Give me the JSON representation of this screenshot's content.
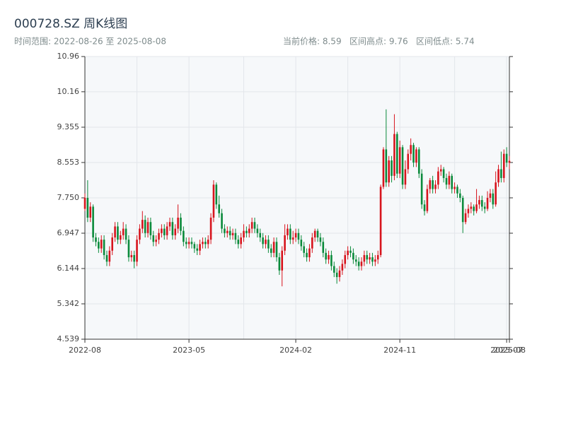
{
  "chart_data": {
    "type": "candlestick",
    "title": "000728.SZ 周K线图",
    "subtitle": "时间范围: 2022-08-26 至 2025-08-08",
    "stats": "当前价格: 8.59   区间高点: 9.76   区间低点: 5.74",
    "up_color": "#d7141d",
    "down_color": "#0b8a3b",
    "categories": [
      "2022-08",
      null,
      null,
      null,
      null,
      null,
      null,
      null,
      null,
      null,
      null,
      null,
      null,
      null,
      null,
      null,
      null,
      null,
      null,
      null,
      null,
      null,
      null,
      null,
      null,
      null,
      null,
      null,
      null,
      null,
      null,
      null,
      null,
      null,
      null,
      null,
      null,
      null,
      "2023-05",
      null,
      null,
      null,
      null,
      null,
      null,
      null,
      null,
      null,
      null,
      null,
      null,
      null,
      null,
      null,
      null,
      null,
      null,
      null,
      null,
      null,
      null,
      null,
      null,
      null,
      null,
      null,
      null,
      null,
      null,
      null,
      null,
      null,
      null,
      null,
      null,
      null,
      null,
      "2024-02",
      null,
      null,
      null,
      null,
      null,
      null,
      null,
      null,
      null,
      null,
      null,
      null,
      null,
      null,
      null,
      null,
      null,
      null,
      null,
      null,
      null,
      null,
      null,
      null,
      null,
      null,
      null,
      null,
      null,
      null,
      null,
      null,
      null,
      null,
      null,
      null,
      null,
      "2024-11",
      null,
      null,
      null,
      null,
      null,
      null,
      null,
      null,
      null,
      null,
      null,
      null,
      null,
      null,
      null,
      null,
      null,
      null,
      null,
      null,
      null,
      null,
      null,
      null,
      null,
      null,
      null,
      null,
      null,
      null,
      null,
      null,
      null,
      null,
      null,
      null,
      null,
      null,
      "2025-07",
      "2025-08"
    ],
    "xticks": [
      0,
      19,
      38,
      58,
      77,
      96,
      115,
      135,
      154,
      155
    ],
    "open": [
      7.5,
      7.75,
      7.3,
      7.55,
      6.85,
      6.75,
      6.6,
      6.8,
      6.45,
      6.3,
      6.55,
      6.85,
      7.1,
      6.8,
      6.9,
      7.05,
      6.8,
      6.4,
      6.45,
      6.3,
      6.8,
      7.05,
      7.25,
      6.95,
      7.2,
      6.9,
      6.75,
      6.8,
      6.95,
      7.05,
      6.9,
      7.1,
      7.2,
      6.9,
      7.05,
      7.3,
      7.0,
      6.75,
      6.7,
      6.75,
      6.7,
      6.6,
      6.55,
      6.7,
      6.75,
      6.7,
      6.8,
      7.3,
      8.05,
      7.6,
      7.4,
      7.05,
      6.95,
      7.0,
      6.9,
      6.95,
      6.8,
      6.7,
      6.85,
      7.0,
      6.95,
      7.05,
      7.2,
      7.05,
      6.95,
      6.85,
      6.7,
      6.8,
      6.6,
      6.5,
      6.75,
      6.4,
      6.1,
      6.55,
      6.9,
      7.05,
      6.8,
      6.85,
      6.95,
      6.8,
      6.65,
      6.5,
      6.4,
      6.6,
      6.85,
      7.0,
      6.85,
      6.75,
      6.5,
      6.35,
      6.45,
      6.2,
      6.05,
      5.95,
      6.1,
      6.25,
      6.45,
      6.55,
      6.5,
      6.35,
      6.3,
      6.2,
      6.3,
      6.45,
      6.35,
      6.4,
      6.3,
      6.35,
      6.45,
      8.0,
      8.85,
      8.1,
      8.6,
      8.25,
      9.2,
      8.3,
      8.9,
      8.05,
      8.4,
      8.75,
      8.95,
      8.55,
      8.85,
      8.3,
      7.6,
      7.45,
      7.95,
      8.15,
      7.95,
      8.05,
      8.35,
      8.4,
      8.2,
      8.05,
      8.25,
      7.95,
      8.0,
      7.85,
      7.75,
      7.2,
      7.4,
      7.5,
      7.55,
      7.45,
      7.6,
      7.7,
      7.55,
      7.5,
      7.75,
      7.85,
      7.6,
      8.1,
      8.4,
      8.2,
      8.75,
      8.55
    ],
    "close": [
      7.75,
      7.3,
      7.55,
      6.85,
      6.75,
      6.6,
      6.8,
      6.45,
      6.3,
      6.55,
      6.85,
      7.1,
      6.8,
      6.9,
      7.05,
      6.8,
      6.4,
      6.45,
      6.3,
      6.8,
      7.05,
      7.25,
      6.95,
      7.2,
      6.9,
      6.75,
      6.8,
      6.95,
      7.05,
      6.9,
      7.1,
      7.2,
      6.9,
      7.05,
      7.3,
      7.0,
      6.75,
      6.7,
      6.75,
      6.7,
      6.6,
      6.55,
      6.7,
      6.75,
      6.7,
      6.8,
      7.3,
      8.05,
      7.6,
      7.4,
      7.05,
      6.95,
      7.0,
      6.9,
      6.95,
      6.8,
      6.7,
      6.85,
      7.0,
      6.95,
      7.05,
      7.2,
      7.05,
      6.95,
      6.85,
      6.7,
      6.8,
      6.6,
      6.5,
      6.75,
      6.4,
      6.1,
      6.55,
      6.9,
      7.05,
      6.8,
      6.85,
      6.95,
      6.8,
      6.65,
      6.5,
      6.4,
      6.6,
      6.85,
      7.0,
      6.85,
      6.75,
      6.5,
      6.35,
      6.45,
      6.2,
      6.05,
      5.95,
      6.1,
      6.25,
      6.45,
      6.55,
      6.5,
      6.35,
      6.3,
      6.2,
      6.3,
      6.45,
      6.35,
      6.4,
      6.3,
      6.35,
      6.45,
      8.0,
      8.85,
      8.1,
      8.6,
      8.25,
      9.2,
      8.3,
      8.9,
      8.05,
      8.4,
      8.75,
      8.95,
      8.55,
      8.85,
      8.3,
      7.6,
      7.45,
      7.95,
      8.15,
      7.95,
      8.05,
      8.35,
      8.4,
      8.2,
      8.05,
      8.25,
      7.95,
      8.0,
      7.85,
      7.75,
      7.2,
      7.4,
      7.5,
      7.55,
      7.45,
      7.6,
      7.7,
      7.55,
      7.5,
      7.75,
      7.85,
      7.6,
      8.1,
      8.4,
      8.2,
      8.75,
      8.55,
      8.59
    ],
    "high": [
      7.85,
      8.15,
      7.65,
      7.6,
      6.95,
      6.85,
      6.9,
      6.9,
      6.55,
      6.65,
      6.95,
      7.2,
      7.2,
      7.0,
      7.2,
      7.15,
      6.9,
      6.55,
      6.55,
      6.9,
      7.15,
      7.45,
      7.35,
      7.3,
      7.3,
      7.0,
      6.9,
      7.05,
      7.15,
      7.15,
      7.2,
      7.3,
      7.3,
      7.15,
      7.6,
      7.4,
      7.1,
      6.85,
      6.85,
      6.85,
      6.75,
      6.7,
      6.8,
      6.85,
      6.85,
      6.9,
      7.4,
      8.15,
      8.1,
      7.8,
      7.5,
      7.15,
      7.1,
      7.1,
      7.05,
      7.05,
      6.9,
      6.95,
      7.15,
      7.1,
      7.15,
      7.3,
      7.3,
      7.15,
      7.05,
      6.95,
      6.9,
      6.9,
      6.7,
      6.85,
      6.85,
      6.5,
      6.65,
      7.15,
      7.15,
      7.15,
      7.0,
      7.05,
      7.05,
      6.9,
      6.75,
      6.6,
      6.7,
      6.95,
      7.05,
      7.05,
      6.95,
      6.85,
      6.6,
      6.55,
      6.55,
      6.3,
      6.15,
      6.2,
      6.35,
      6.55,
      6.65,
      6.65,
      6.6,
      6.45,
      6.4,
      6.4,
      6.55,
      6.55,
      6.5,
      6.5,
      6.45,
      6.55,
      8.05,
      8.9,
      9.76,
      8.7,
      8.7,
      9.65,
      9.25,
      9.05,
      8.95,
      8.6,
      8.85,
      9.1,
      9.0,
      8.9,
      8.9,
      8.4,
      7.7,
      8.05,
      8.2,
      8.25,
      8.15,
      8.45,
      8.5,
      8.45,
      8.3,
      8.35,
      8.3,
      8.1,
      8.05,
      7.95,
      7.8,
      7.5,
      7.6,
      7.65,
      7.6,
      7.95,
      7.8,
      7.8,
      7.65,
      7.9,
      7.95,
      7.95,
      8.35,
      8.5,
      8.8,
      8.85,
      8.9,
      8.7
    ],
    "low": [
      7.45,
      7.2,
      7.2,
      6.75,
      6.65,
      6.5,
      6.5,
      6.35,
      6.2,
      6.2,
      6.45,
      6.75,
      6.7,
      6.7,
      6.8,
      6.7,
      6.3,
      6.3,
      6.15,
      6.2,
      6.7,
      6.95,
      6.85,
      6.85,
      6.8,
      6.65,
      6.65,
      6.7,
      6.85,
      6.8,
      6.8,
      7.0,
      6.8,
      6.8,
      6.95,
      6.9,
      6.65,
      6.6,
      6.6,
      6.6,
      6.5,
      6.45,
      6.45,
      6.6,
      6.6,
      6.6,
      6.7,
      7.2,
      7.5,
      7.3,
      6.95,
      6.85,
      6.85,
      6.8,
      6.8,
      6.7,
      6.6,
      6.6,
      6.75,
      6.85,
      6.85,
      6.95,
      6.95,
      6.85,
      6.75,
      6.6,
      6.6,
      6.5,
      6.4,
      6.4,
      6.3,
      6.0,
      5.74,
      6.45,
      6.8,
      6.7,
      6.7,
      6.75,
      6.7,
      6.55,
      6.4,
      6.3,
      6.3,
      6.5,
      6.75,
      6.75,
      6.65,
      6.4,
      6.25,
      6.25,
      6.1,
      5.95,
      5.8,
      5.85,
      6.0,
      6.15,
      6.35,
      6.4,
      6.25,
      6.2,
      6.1,
      6.1,
      6.2,
      6.25,
      6.25,
      6.2,
      6.2,
      6.25,
      6.4,
      7.95,
      8.0,
      8.0,
      8.1,
      8.15,
      8.2,
      8.2,
      7.95,
      7.95,
      8.3,
      8.6,
      8.45,
      8.45,
      8.2,
      7.5,
      7.35,
      7.4,
      7.85,
      7.85,
      7.85,
      7.95,
      8.25,
      8.1,
      7.95,
      7.95,
      7.85,
      7.85,
      7.75,
      7.65,
      6.95,
      7.15,
      7.3,
      7.4,
      7.35,
      7.4,
      7.5,
      7.45,
      7.4,
      7.45,
      7.65,
      7.5,
      7.55,
      8.0,
      8.1,
      8.1,
      8.45,
      8.4
    ],
    "ylim": [
      4.539,
      10.96
    ],
    "yticks": [
      4.539,
      5.342,
      6.144,
      6.947,
      {
        "value": 7.75,
        "label": "7.750"
      },
      8.553,
      9.355,
      10.16,
      10.96
    ],
    "grid": true
  }
}
